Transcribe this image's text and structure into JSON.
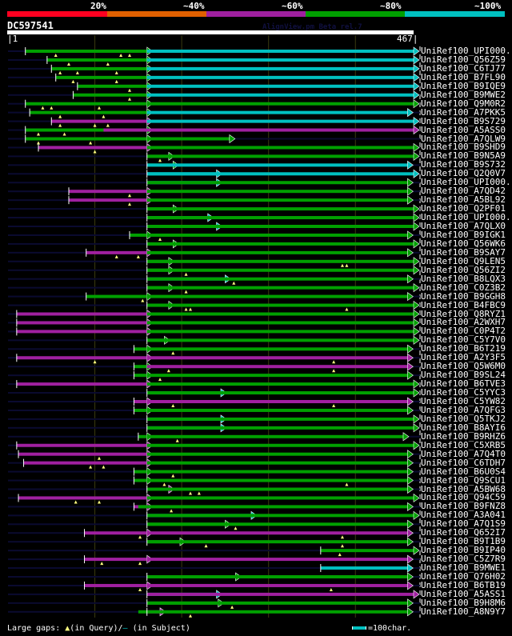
{
  "app": {
    "watermark": "AlignView.pm Beta rel.7"
  },
  "identity_scale": {
    "labels": [
      "20%",
      "~40%",
      "~60%",
      "~80%",
      "~100%"
    ],
    "colors": [
      "#ff0020",
      "#e06000",
      "#a020a0",
      "#00a000",
      "#00c0c0"
    ]
  },
  "query": {
    "id": "DC597541",
    "start_label": "|1",
    "end_label": "467|",
    "length": 467
  },
  "legend": {
    "prefix": "Large gaps:",
    "query_gap_glyph": "▲",
    "query_gap_text": "(in Query)/",
    "subject_gap_glyph": "–",
    "subject_gap_text": "(in Subject)",
    "scale_text": "=100char."
  },
  "hits": [
    {
      "name": "UniRef100_UPI000..",
      "segs": [
        [
          20,
          160,
          "g"
        ],
        [
          160,
          467,
          "c"
        ]
      ],
      "gaps": [
        55,
        130,
        140
      ]
    },
    {
      "name": "UniRef100_Q56Z59",
      "segs": [
        [
          45,
          160,
          "g"
        ],
        [
          160,
          467,
          "c"
        ]
      ],
      "gaps": [
        70,
        115
      ]
    },
    {
      "name": "UniRef100_C6TJ77",
      "segs": [
        [
          50,
          160,
          "g"
        ],
        [
          160,
          467,
          "c"
        ]
      ],
      "gaps": [
        60,
        80,
        125
      ]
    },
    {
      "name": "UniRef100_B7FL90",
      "segs": [
        [
          55,
          160,
          "g"
        ],
        [
          160,
          467,
          "c"
        ]
      ],
      "gaps": [
        75,
        125
      ]
    },
    {
      "name": "UniRef100_B9IQE9",
      "segs": [
        [
          80,
          160,
          "g"
        ],
        [
          160,
          467,
          "c"
        ]
      ],
      "gaps": [
        140
      ]
    },
    {
      "name": "UniRef100_B9MWE2",
      "segs": [
        [
          75,
          160,
          "g"
        ],
        [
          160,
          467,
          "c"
        ]
      ],
      "gaps": [
        140
      ]
    },
    {
      "name": "UniRef100_Q9M0R2",
      "segs": [
        [
          20,
          160,
          "g"
        ],
        [
          160,
          467,
          "g"
        ]
      ],
      "gaps": [
        40,
        50,
        105
      ]
    },
    {
      "name": "UniRef100_A7PKK5",
      "segs": [
        [
          25,
          160,
          "g"
        ],
        [
          160,
          460,
          "c"
        ]
      ],
      "gaps": [
        60,
        110
      ]
    },
    {
      "name": "UniRef100_B9S729",
      "segs": [
        [
          50,
          160,
          "p"
        ],
        [
          160,
          467,
          "c"
        ]
      ],
      "gaps": [
        60,
        100,
        115
      ]
    },
    {
      "name": "UniRef100_A5ASS0",
      "segs": [
        [
          20,
          110,
          "g"
        ],
        [
          110,
          467,
          "p"
        ]
      ],
      "gaps": [
        35,
        65
      ]
    },
    {
      "name": "UniRef100_A7QLW9",
      "segs": [
        [
          20,
          160,
          "g"
        ],
        [
          160,
          255,
          "g"
        ]
      ],
      "gaps": [
        35,
        95
      ]
    },
    {
      "name": "UniRef100_B9SHD9",
      "segs": [
        [
          35,
          160,
          "p"
        ],
        [
          160,
          467,
          "g"
        ]
      ],
      "gaps": [
        100
      ]
    },
    {
      "name": "UniRef100_B9N5A9",
      "segs": [
        [
          185,
          160,
          "g"
        ],
        [
          160,
          467,
          "g"
        ]
      ],
      "gaps": [
        175
      ]
    },
    {
      "name": "UniRef100_B9S732",
      "segs": [
        [
          190,
          160,
          "g"
        ],
        [
          160,
          460,
          "c"
        ]
      ],
      "gaps": []
    },
    {
      "name": "UniRef100_Q2Q0V7",
      "segs": [
        [
          240,
          160,
          "c"
        ],
        [
          160,
          467,
          "c"
        ]
      ],
      "gaps": []
    },
    {
      "name": "UniRef100_UPI000..",
      "segs": [
        [
          240,
          160,
          "c"
        ],
        [
          160,
          460,
          "g"
        ]
      ],
      "gaps": []
    },
    {
      "name": "UniRef100_A7QD42",
      "segs": [
        [
          70,
          160,
          "p"
        ],
        [
          160,
          460,
          "g"
        ]
      ],
      "gaps": [
        140
      ]
    },
    {
      "name": "UniRef100_A5BL92",
      "segs": [
        [
          70,
          160,
          "p"
        ],
        [
          160,
          460,
          "g"
        ]
      ],
      "gaps": [
        140
      ]
    },
    {
      "name": "UniRef100_Q2PF01",
      "segs": [
        [
          190,
          160,
          "g"
        ],
        [
          160,
          467,
          "g"
        ]
      ],
      "gaps": []
    },
    {
      "name": "UniRef100_UPI000..",
      "segs": [
        [
          230,
          160,
          "c"
        ],
        [
          160,
          467,
          "g"
        ]
      ],
      "gaps": []
    },
    {
      "name": "UniRef100_A7QLX0",
      "segs": [
        [
          240,
          160,
          "c"
        ],
        [
          160,
          467,
          "g"
        ]
      ],
      "gaps": []
    },
    {
      "name": "UniRef100_B9IGK1",
      "segs": [
        [
          140,
          160,
          "g"
        ],
        [
          160,
          460,
          "g"
        ]
      ],
      "gaps": [
        175
      ]
    },
    {
      "name": "UniRef100_Q56WK6",
      "segs": [
        [
          190,
          160,
          "g"
        ],
        [
          160,
          467,
          "g"
        ]
      ],
      "gaps": []
    },
    {
      "name": "UniRef100_B9SAY7",
      "segs": [
        [
          90,
          160,
          "p"
        ],
        [
          160,
          460,
          "g"
        ]
      ],
      "gaps": [
        125,
        150
      ]
    },
    {
      "name": "UniRef100_Q9LEN5",
      "segs": [
        [
          185,
          160,
          "g"
        ],
        [
          160,
          467,
          "g"
        ]
      ],
      "gaps": [
        385,
        390
      ]
    },
    {
      "name": "UniRef100_Q56ZI2",
      "segs": [
        [
          185,
          160,
          "g"
        ],
        [
          160,
          467,
          "g"
        ]
      ],
      "gaps": [
        205
      ]
    },
    {
      "name": "UniRef100_B8LQX3",
      "segs": [
        [
          250,
          160,
          "c"
        ],
        [
          160,
          460,
          "g"
        ]
      ],
      "gaps": [
        260
      ]
    },
    {
      "name": "UniRef100_C0Z3B2",
      "segs": [
        [
          185,
          160,
          "g"
        ],
        [
          160,
          467,
          "g"
        ]
      ],
      "gaps": [
        205
      ]
    },
    {
      "name": "UniRef100_B9GGH8",
      "segs": [
        [
          90,
          160,
          "g"
        ],
        [
          160,
          460,
          "g"
        ]
      ],
      "gaps": [
        155
      ]
    },
    {
      "name": "UniRef100_B4FBC9",
      "segs": [
        [
          185,
          160,
          "g"
        ],
        [
          160,
          467,
          "g"
        ]
      ],
      "gaps": [
        205,
        210,
        390
      ]
    },
    {
      "name": "UniRef100_Q8RYZ1",
      "segs": [
        [
          10,
          160,
          "p"
        ],
        [
          160,
          467,
          "g"
        ]
      ],
      "gaps": []
    },
    {
      "name": "UniRef100_A2WXH7",
      "segs": [
        [
          10,
          160,
          "p"
        ],
        [
          160,
          467,
          "g"
        ]
      ],
      "gaps": []
    },
    {
      "name": "UniRef100_C0P4T2",
      "segs": [
        [
          10,
          160,
          "p"
        ],
        [
          160,
          467,
          "g"
        ]
      ],
      "gaps": []
    },
    {
      "name": "UniRef100_C5Y7V0",
      "segs": [
        [
          180,
          160,
          "g"
        ],
        [
          160,
          467,
          "g"
        ]
      ],
      "gaps": []
    },
    {
      "name": "UniRef100_B6T219",
      "segs": [
        [
          145,
          160,
          "g"
        ],
        [
          160,
          460,
          "g"
        ]
      ],
      "gaps": [
        190
      ]
    },
    {
      "name": "UniRef100_A2Y3F5",
      "segs": [
        [
          10,
          160,
          "p"
        ],
        [
          160,
          460,
          "p"
        ]
      ],
      "gaps": [
        100,
        375
      ]
    },
    {
      "name": "UniRef100_Q5W6M0",
      "segs": [
        [
          145,
          160,
          "g"
        ],
        [
          160,
          460,
          "p"
        ]
      ],
      "gaps": [
        185,
        375
      ]
    },
    {
      "name": "UniRef100_B9SL24",
      "segs": [
        [
          145,
          160,
          "g"
        ],
        [
          160,
          460,
          "g"
        ]
      ],
      "gaps": [
        175
      ]
    },
    {
      "name": "UniRef100_B6TVE3",
      "segs": [
        [
          10,
          160,
          "p"
        ],
        [
          160,
          467,
          "g"
        ]
      ],
      "gaps": []
    },
    {
      "name": "UniRef100_C5YYC3",
      "segs": [
        [
          245,
          160,
          "c"
        ],
        [
          160,
          467,
          "g"
        ]
      ],
      "gaps": []
    },
    {
      "name": "UniRef100_C5YW82",
      "segs": [
        [
          145,
          160,
          "p"
        ],
        [
          160,
          460,
          "p"
        ]
      ],
      "gaps": [
        190,
        375
      ]
    },
    {
      "name": "UniRef100_A7QFG3",
      "segs": [
        [
          145,
          160,
          "g"
        ],
        [
          160,
          460,
          "g"
        ]
      ],
      "gaps": []
    },
    {
      "name": "UniRef100_Q5TKJ2",
      "segs": [
        [
          245,
          160,
          "c"
        ],
        [
          160,
          467,
          "g"
        ]
      ],
      "gaps": []
    },
    {
      "name": "UniRef100_B8AYI6",
      "segs": [
        [
          245,
          160,
          "c"
        ],
        [
          160,
          467,
          "g"
        ]
      ],
      "gaps": []
    },
    {
      "name": "UniRef100_B9RHZ6",
      "segs": [
        [
          150,
          160,
          "g"
        ],
        [
          160,
          455,
          "g"
        ]
      ],
      "gaps": [
        195
      ]
    },
    {
      "name": "UniRef100_C5XRB5",
      "segs": [
        [
          10,
          160,
          "p"
        ],
        [
          160,
          467,
          "g"
        ]
      ],
      "gaps": []
    },
    {
      "name": "UniRef100_A7Q4T0",
      "segs": [
        [
          12,
          160,
          "p"
        ],
        [
          160,
          460,
          "g"
        ]
      ],
      "gaps": [
        105
      ]
    },
    {
      "name": "UniRef100_C6TDH7",
      "segs": [
        [
          18,
          160,
          "p"
        ],
        [
          160,
          460,
          "g"
        ]
      ],
      "gaps": [
        95,
        110
      ]
    },
    {
      "name": "UniRef100_B6U0S4",
      "segs": [
        [
          145,
          160,
          "g"
        ],
        [
          160,
          460,
          "g"
        ]
      ],
      "gaps": [
        190
      ]
    },
    {
      "name": "UniRef100_Q9SCU1",
      "segs": [
        [
          145,
          160,
          "g"
        ],
        [
          160,
          460,
          "g"
        ]
      ],
      "gaps": [
        180,
        390
      ]
    },
    {
      "name": "UniRef100_A5BW68",
      "segs": [
        [
          185,
          160,
          "p"
        ],
        [
          160,
          460,
          "g"
        ]
      ],
      "gaps": [
        210,
        220
      ]
    },
    {
      "name": "UniRef100_Q94C59",
      "segs": [
        [
          12,
          160,
          "p"
        ],
        [
          160,
          467,
          "g"
        ]
      ],
      "gaps": [
        78,
        105
      ]
    },
    {
      "name": "UniRef100_B9FNZ8",
      "segs": [
        [
          145,
          150,
          "p"
        ],
        [
          150,
          460,
          "g"
        ]
      ],
      "gaps": [
        188
      ]
    },
    {
      "name": "UniRef100_A3A041",
      "segs": [
        [
          280,
          160,
          "c"
        ],
        [
          160,
          467,
          "g"
        ]
      ],
      "gaps": []
    },
    {
      "name": "UniRef100_A7Q1S9",
      "segs": [
        [
          250,
          160,
          "g"
        ],
        [
          160,
          460,
          "g"
        ]
      ],
      "gaps": [
        262
      ]
    },
    {
      "name": "UniRef100_Q652I7",
      "segs": [
        [
          88,
          160,
          "p"
        ],
        [
          160,
          460,
          "p"
        ]
      ],
      "gaps": [
        152,
        385
      ]
    },
    {
      "name": "UniRef100_B9T1B9",
      "segs": [
        [
          198,
          160,
          "g"
        ],
        [
          160,
          460,
          "g"
        ]
      ],
      "gaps": [
        228,
        385
      ]
    },
    {
      "name": "UniRef100_B9IP40",
      "segs": [
        [
          360,
          467,
          "g"
        ]
      ],
      "gaps": [
        382
      ]
    },
    {
      "name": "UniRef100_C5Z7R9",
      "segs": [
        [
          88,
          160,
          "p"
        ],
        [
          160,
          460,
          "p"
        ]
      ],
      "gaps": [
        108,
        152
      ]
    },
    {
      "name": "UniRef100_B9MWE1",
      "segs": [
        [
          360,
          460,
          "c"
        ]
      ],
      "gaps": []
    },
    {
      "name": "UniRef100_Q76H02",
      "segs": [
        [
          262,
          160,
          "g"
        ],
        [
          160,
          460,
          "g"
        ]
      ],
      "gaps": []
    },
    {
      "name": "UniRef100_B6TB19",
      "segs": [
        [
          88,
          160,
          "p"
        ],
        [
          160,
          460,
          "p"
        ]
      ],
      "gaps": [
        152,
        372
      ]
    },
    {
      "name": "UniRef100_A5ASS1",
      "segs": [
        [
          240,
          160,
          "c"
        ],
        [
          160,
          467,
          "p"
        ]
      ],
      "gaps": []
    },
    {
      "name": "UniRef100_B9H8M6",
      "segs": [
        [
          242,
          160,
          "g"
        ],
        [
          160,
          460,
          "g"
        ]
      ],
      "gaps": [
        258
      ]
    },
    {
      "name": "UniRef100_A8N9Y7",
      "segs": [
        [
          175,
          150,
          "p"
        ],
        [
          150,
          460,
          "g"
        ]
      ],
      "gaps": [
        210
      ]
    }
  ]
}
